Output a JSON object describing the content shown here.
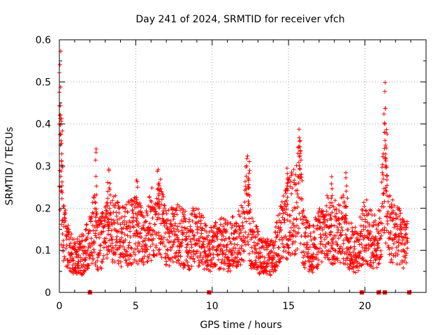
{
  "chart_data": {
    "type": "scatter",
    "title": "Day 241 of 2024, SRMTID for receiver vfch",
    "xlabel": "GPS time / hours",
    "ylabel": "SRMTID / TECUs",
    "xlim": [
      0,
      24
    ],
    "ylim": [
      0,
      0.6
    ],
    "xticks": [
      0,
      5,
      10,
      15,
      20
    ],
    "yticks": [
      0,
      0.1,
      0.2,
      0.3,
      0.4,
      0.5,
      0.6
    ],
    "ytick_labels": [
      "0",
      "0.1",
      "0.2",
      "0.3",
      "0.4",
      "0.5",
      "0.6"
    ],
    "grid": true,
    "legend": "none",
    "marker": "+",
    "color": "#ff0000",
    "series": [
      {
        "name": "SRMTID",
        "approx_profile": {
          "x": [
            0.0,
            0.1,
            0.3,
            0.6,
            1.0,
            1.5,
            2.0,
            2.3,
            2.5,
            3.0,
            3.3,
            4.0,
            4.5,
            5.0,
            5.5,
            6.0,
            6.5,
            7.0,
            7.5,
            8.0,
            8.5,
            9.0,
            9.5,
            10.0,
            10.5,
            11.0,
            11.5,
            12.0,
            12.3,
            12.5,
            13.0,
            13.5,
            14.0,
            14.5,
            15.0,
            15.5,
            15.7,
            16.0,
            16.5,
            17.0,
            17.5,
            18.0,
            18.5,
            19.0,
            19.5,
            20.0,
            20.5,
            21.0,
            21.3,
            21.5,
            22.0,
            22.5,
            22.8
          ],
          "y": [
            0.45,
            0.25,
            0.14,
            0.1,
            0.08,
            0.09,
            0.12,
            0.16,
            0.11,
            0.13,
            0.17,
            0.13,
            0.14,
            0.15,
            0.13,
            0.16,
            0.2,
            0.12,
            0.14,
            0.13,
            0.12,
            0.14,
            0.11,
            0.1,
            0.12,
            0.11,
            0.12,
            0.14,
            0.22,
            0.13,
            0.1,
            0.08,
            0.09,
            0.14,
            0.18,
            0.2,
            0.26,
            0.12,
            0.1,
            0.13,
            0.15,
            0.14,
            0.16,
            0.11,
            0.1,
            0.15,
            0.12,
            0.13,
            0.3,
            0.16,
            0.14,
            0.12,
            0.13
          ]
        },
        "spikes": [
          {
            "x": 0.05,
            "max": 0.58
          },
          {
            "x": 0.15,
            "max": 0.43
          },
          {
            "x": 2.4,
            "max": 0.37
          },
          {
            "x": 3.2,
            "max": 0.31
          },
          {
            "x": 5.1,
            "max": 0.28
          },
          {
            "x": 6.5,
            "max": 0.27
          },
          {
            "x": 12.4,
            "max": 0.32
          },
          {
            "x": 14.9,
            "max": 0.3
          },
          {
            "x": 15.7,
            "max": 0.36
          },
          {
            "x": 17.8,
            "max": 0.29
          },
          {
            "x": 18.8,
            "max": 0.31
          },
          {
            "x": 21.3,
            "max": 0.5
          },
          {
            "x": 21.4,
            "max": 0.4
          }
        ],
        "gap_markers_x": [
          2.0,
          9.8,
          19.8,
          20.9,
          21.3,
          22.9
        ]
      }
    ]
  }
}
